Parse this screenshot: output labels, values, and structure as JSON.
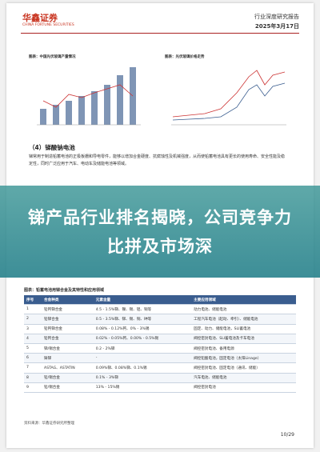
{
  "header": {
    "logo": "华鑫证券",
    "logo_sub": "CHINA FORTUNE SECURITIES",
    "report_type": "行业深度研究报告",
    "date": "2025年3月17日"
  },
  "figures": [
    {
      "title": "图表：中国光伏玻璃产量情况"
    },
    {
      "title": "图表：光伏玻璃价格走势"
    }
  ],
  "section": {
    "heading": "（4）锑酸钠电池",
    "paragraph": "锑常用于制造铅蓄电池的正极板栅和导电零件，能够以增加合金硬度、抗腐蚀性及机械强度，从而使铅蓄电池具有更长的使用寿命、安全性能及稳定性，同时广泛应用于汽车、电动车及储能电池等领域。"
  },
  "overlay": {
    "title": "锑产品行业排名揭晓，公司竞争力比拼及市场深"
  },
  "table": {
    "title": "图表：铅蓄电池用锑合金及其特性和应用领域",
    "header": [
      "序号",
      "合金种类",
      "元素含量",
      "主要应用领域"
    ],
    "rows": [
      [
        "1",
        "铅钙锑合金",
        "4.5 - 1.5%锑、镍、锡、铝、铜等",
        "动力电池、储能电池"
      ],
      [
        "2",
        "铅锑合金",
        "0.5 - 3.5%锑、锑、锡、铜、砷等",
        "工程汽车电池（起动、牵引）、储能电池"
      ],
      [
        "3",
        "铅钙锑合金",
        "0.08% - 0.12%钙、0% - 3%锡",
        "固定、动力、储能电池，SLI蓄电池"
      ],
      [
        "4",
        "铅钙合金",
        "0.02% - 0.05%钙、0.00% - 0.5%锡",
        "阀控密封电池、SLI蓄电池及卡车电池"
      ],
      [
        "5",
        "锑/锡合金",
        "0.2 - 2%锑",
        "阀控密封电池、备用电源"
      ],
      [
        "6",
        "铸锑",
        "-",
        "阀控铅酸电池，固定电池（太阳Linage）"
      ],
      [
        "7",
        "ASTAG、ASTATIN",
        "0.09%锑、0.08%锑、0.1%锡",
        "阀控密封电池、固定电池（通讯、储能）"
      ],
      [
        "8",
        "铅/锡合金",
        "0.1% - 3%锑",
        "汽车电池、储能电池"
      ],
      [
        "9",
        "铅/锡合金",
        "13% - 15%锡",
        "阀控密封电池"
      ]
    ],
    "source": "资料来源：华鑫证券研究所整理"
  },
  "footer": {
    "page": "10/29"
  }
}
